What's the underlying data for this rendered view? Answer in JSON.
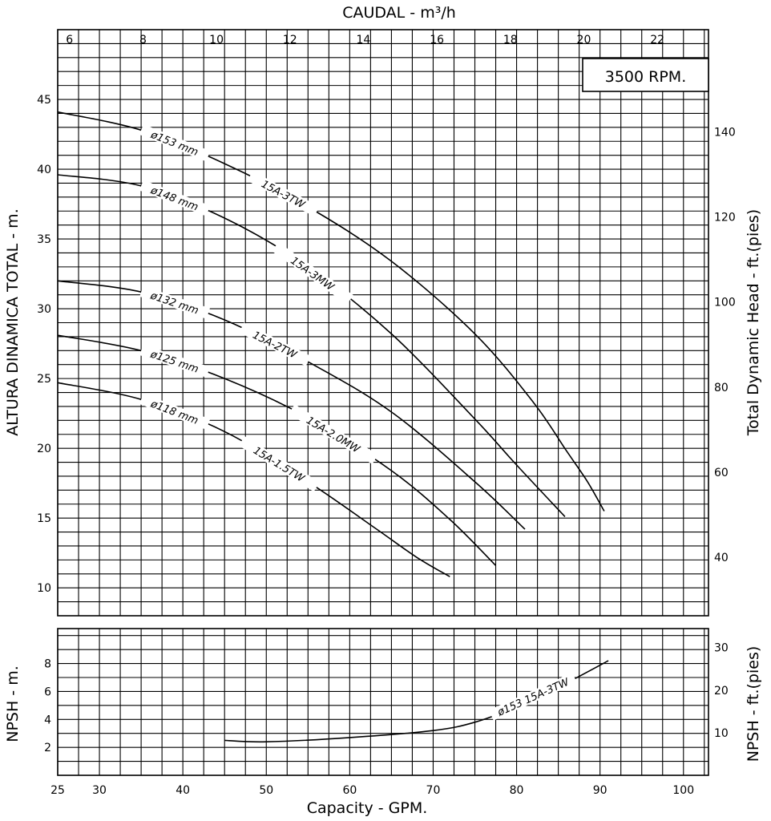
{
  "chart_data": [
    {
      "type": "line",
      "title": "3500 RPM.",
      "xlabel": "Capacity - GPM.",
      "x2label": "CAUDAL - m³/h",
      "ylabel": "ALTURA DINAMICA TOTAL - m.",
      "y2label": "Total Dynamic Head - ft.(pies)",
      "xlim": [
        25,
        103
      ],
      "ylim": [
        8,
        50
      ],
      "grid": true,
      "x_ticks": [
        25,
        30,
        40,
        50,
        60,
        70,
        80,
        90,
        100
      ],
      "x2_ticks": [
        6,
        8,
        10,
        12,
        14,
        16,
        18,
        20,
        22
      ],
      "y_ticks": [
        10,
        15,
        20,
        25,
        30,
        35,
        40,
        45
      ],
      "y2_ticks": [
        40,
        60,
        80,
        100,
        120,
        140
      ],
      "series": [
        {
          "name": "ø153 mm 15A-3TW",
          "diameter_label": "ø153 mm",
          "model_label": "15A-3TW",
          "x": [
            25,
            35,
            45,
            55,
            65,
            75,
            82,
            86,
            88.5,
            90.5
          ],
          "y": [
            44.1,
            42.8,
            40.4,
            37.3,
            33.4,
            28.2,
            23.3,
            19.8,
            17.6,
            15.5
          ]
        },
        {
          "name": "ø148 mm 15A-3MW",
          "diameter_label": "ø148 mm",
          "model_label": "15A-3MW",
          "x": [
            25,
            35,
            45,
            55,
            65,
            75,
            80,
            85.8
          ],
          "y": [
            39.6,
            38.8,
            36.5,
            33,
            28.2,
            22.1,
            18.8,
            15.1
          ]
        },
        {
          "name": "ø132 mm 15A-2TW",
          "diameter_label": "ø132 mm",
          "model_label": "15A-2TW",
          "x": [
            25,
            35,
            45,
            55,
            65,
            75,
            81
          ],
          "y": [
            32,
            31.2,
            29.2,
            26.2,
            22.6,
            17.6,
            14.2
          ]
        },
        {
          "name": "ø125 mm 15A-2.0MW",
          "diameter_label": "ø125 mm",
          "model_label": "15A-2.0MW",
          "x": [
            25,
            35,
            45,
            55,
            65,
            72,
            77.5
          ],
          "y": [
            28.1,
            27,
            25,
            22.2,
            18.4,
            14.9,
            11.6
          ]
        },
        {
          "name": "ø118 mm 15A-1.5TW",
          "diameter_label": "ø118 mm",
          "model_label": "15A-1.5TW",
          "x": [
            25,
            35,
            45,
            55,
            63,
            68,
            72
          ],
          "y": [
            24.7,
            23.5,
            21.2,
            17.6,
            14.3,
            12.2,
            10.8
          ]
        }
      ]
    },
    {
      "type": "line",
      "xlabel": "Capacity - GPM.",
      "ylabel": "NPSH - m.",
      "y2label": "NPSH - ft.(pies)",
      "xlim": [
        25,
        103
      ],
      "ylim": [
        0,
        10.5
      ],
      "grid": true,
      "y_ticks": [
        2,
        4,
        6,
        8
      ],
      "y2_ticks": [
        10,
        20,
        30
      ],
      "series": [
        {
          "name": "ø153 15A-3TW",
          "label": "ø153 15A-3TW",
          "x": [
            45,
            50,
            60,
            70,
            75,
            80,
            85,
            91
          ],
          "y": [
            2.5,
            2.4,
            2.7,
            3.2,
            3.8,
            4.9,
            6.3,
            8.2
          ]
        }
      ]
    }
  ]
}
